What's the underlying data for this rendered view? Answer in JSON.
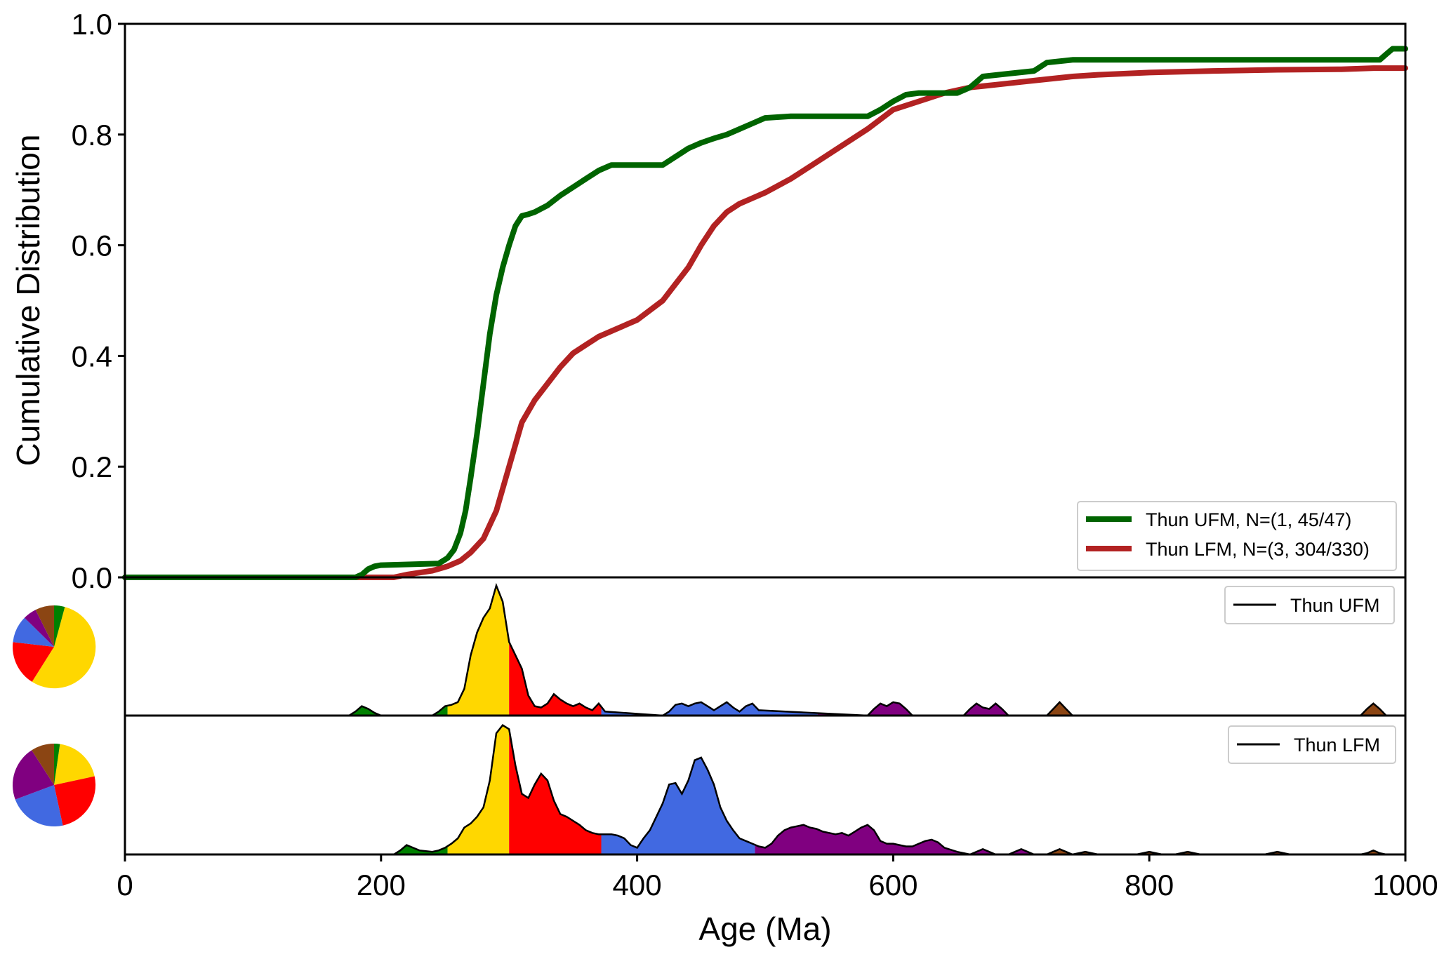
{
  "chart_data": [
    {
      "type": "line",
      "panel": "cdf",
      "xlim": [
        0,
        1000
      ],
      "ylim": [
        0,
        1
      ],
      "ylabel": "Cumulative Distribution",
      "yticks": [
        "0.0",
        "0.2",
        "0.4",
        "0.6",
        "0.8",
        "1.0"
      ],
      "legend_position": "lower-right",
      "series": [
        {
          "name": "Thun UFM, N=(1, 45/47)",
          "color": "#006400",
          "x": [
            0,
            180,
            185,
            190,
            195,
            200,
            245,
            252,
            257,
            262,
            266,
            270,
            275,
            280,
            285,
            290,
            295,
            300,
            305,
            310,
            315,
            320,
            330,
            340,
            350,
            360,
            370,
            380,
            420,
            430,
            440,
            450,
            460,
            470,
            480,
            490,
            500,
            520,
            580,
            590,
            600,
            610,
            620,
            650,
            660,
            670,
            690,
            710,
            720,
            740,
            980,
            985,
            990,
            1000
          ],
          "y": [
            0,
            0,
            0.005,
            0.015,
            0.02,
            0.022,
            0.025,
            0.035,
            0.05,
            0.08,
            0.12,
            0.18,
            0.26,
            0.35,
            0.44,
            0.51,
            0.56,
            0.6,
            0.635,
            0.653,
            0.656,
            0.66,
            0.672,
            0.69,
            0.705,
            0.72,
            0.735,
            0.745,
            0.745,
            0.76,
            0.775,
            0.785,
            0.793,
            0.8,
            0.81,
            0.82,
            0.83,
            0.833,
            0.833,
            0.845,
            0.86,
            0.872,
            0.875,
            0.875,
            0.885,
            0.905,
            0.91,
            0.915,
            0.93,
            0.935,
            0.935,
            0.945,
            0.955,
            0.955
          ]
        },
        {
          "name": "Thun LFM, N=(3, 304/330)",
          "color": "#b22222",
          "x": [
            0,
            210,
            220,
            240,
            252,
            262,
            270,
            280,
            290,
            300,
            310,
            320,
            330,
            340,
            350,
            360,
            370,
            380,
            400,
            420,
            430,
            440,
            450,
            460,
            470,
            480,
            490,
            500,
            520,
            540,
            560,
            580,
            600,
            620,
            640,
            660,
            680,
            700,
            720,
            740,
            760,
            800,
            850,
            900,
            950,
            975,
            1000
          ],
          "y": [
            0,
            0,
            0.005,
            0.012,
            0.02,
            0.03,
            0.045,
            0.07,
            0.12,
            0.2,
            0.28,
            0.32,
            0.35,
            0.38,
            0.405,
            0.42,
            0.435,
            0.445,
            0.465,
            0.5,
            0.53,
            0.56,
            0.6,
            0.635,
            0.66,
            0.675,
            0.685,
            0.695,
            0.72,
            0.75,
            0.78,
            0.81,
            0.845,
            0.86,
            0.875,
            0.885,
            0.89,
            0.895,
            0.9,
            0.905,
            0.908,
            0.912,
            0.915,
            0.917,
            0.918,
            0.92,
            0.92
          ]
        }
      ]
    },
    {
      "type": "area",
      "panel": "kde-upper",
      "legend_label": "Thun UFM",
      "xlim": [
        0,
        1000
      ],
      "ylim": [
        0,
        1
      ],
      "x": [
        0,
        175,
        180,
        185,
        190,
        195,
        200,
        240,
        245,
        250,
        255,
        260,
        265,
        270,
        275,
        280,
        285,
        290,
        295,
        300,
        305,
        310,
        315,
        320,
        325,
        330,
        335,
        340,
        345,
        350,
        355,
        360,
        365,
        370,
        375,
        420,
        425,
        430,
        435,
        440,
        445,
        450,
        455,
        460,
        465,
        470,
        475,
        480,
        485,
        490,
        495,
        580,
        585,
        590,
        595,
        600,
        605,
        610,
        615,
        655,
        660,
        665,
        670,
        675,
        680,
        685,
        690,
        720,
        725,
        730,
        735,
        740,
        965,
        970,
        975,
        980,
        985,
        1000
      ],
      "y": [
        0,
        0,
        0.03,
        0.07,
        0.05,
        0.02,
        0,
        0,
        0.03,
        0.07,
        0.08,
        0.1,
        0.2,
        0.45,
        0.62,
        0.73,
        0.8,
        0.97,
        0.85,
        0.55,
        0.45,
        0.35,
        0.15,
        0.07,
        0.06,
        0.09,
        0.16,
        0.12,
        0.09,
        0.07,
        0.09,
        0.06,
        0.04,
        0.09,
        0.03,
        0,
        0.03,
        0.08,
        0.09,
        0.07,
        0.09,
        0.1,
        0.07,
        0.04,
        0.07,
        0.1,
        0.06,
        0.03,
        0.07,
        0.09,
        0.04,
        0,
        0.05,
        0.09,
        0.07,
        0.1,
        0.09,
        0.05,
        0,
        0,
        0.05,
        0.09,
        0.06,
        0.05,
        0.09,
        0.05,
        0,
        0,
        0.05,
        0.1,
        0.05,
        0,
        0,
        0.05,
        0.09,
        0.05,
        0,
        0
      ],
      "color_bands": [
        {
          "from": 0,
          "to": 252,
          "color": "#008000"
        },
        {
          "from": 252,
          "to": 300,
          "color": "#ffd700"
        },
        {
          "from": 300,
          "to": 372,
          "color": "#ff0000"
        },
        {
          "from": 372,
          "to": 541,
          "color": "#4169e1"
        },
        {
          "from": 541,
          "to": 720,
          "color": "#800080"
        },
        {
          "from": 720,
          "to": 1000,
          "color": "#8b4513"
        }
      ],
      "pie": {
        "values": [
          0.52,
          0.17,
          0.1,
          0.05,
          0.07,
          0.04
        ],
        "colors": [
          "#ffd700",
          "#ff0000",
          "#4169e1",
          "#800080",
          "#8b4513",
          "#008000"
        ],
        "start_value": 0.05
      }
    },
    {
      "type": "area",
      "panel": "kde-lower",
      "legend_label": "Thun LFM",
      "xlim": [
        0,
        1000
      ],
      "ylim": [
        0,
        1
      ],
      "x": [
        0,
        210,
        215,
        220,
        225,
        230,
        240,
        245,
        250,
        255,
        260,
        265,
        270,
        275,
        280,
        285,
        290,
        295,
        300,
        305,
        310,
        315,
        320,
        325,
        330,
        335,
        340,
        345,
        350,
        355,
        360,
        365,
        370,
        375,
        380,
        385,
        390,
        395,
        400,
        405,
        410,
        415,
        420,
        425,
        430,
        435,
        440,
        445,
        450,
        455,
        460,
        465,
        470,
        475,
        480,
        485,
        490,
        495,
        500,
        505,
        510,
        515,
        520,
        525,
        530,
        535,
        540,
        545,
        550,
        555,
        560,
        565,
        570,
        575,
        580,
        585,
        590,
        595,
        600,
        605,
        610,
        615,
        620,
        625,
        630,
        635,
        640,
        650,
        660,
        665,
        670,
        675,
        680,
        690,
        695,
        700,
        705,
        710,
        720,
        725,
        730,
        735,
        740,
        745,
        750,
        755,
        760,
        790,
        795,
        800,
        805,
        810,
        820,
        825,
        830,
        835,
        840,
        890,
        895,
        900,
        905,
        910,
        965,
        970,
        975,
        980,
        985,
        1000
      ],
      "y": [
        0,
        0,
        0.03,
        0.07,
        0.05,
        0.03,
        0.02,
        0.03,
        0.05,
        0.08,
        0.12,
        0.2,
        0.23,
        0.28,
        0.35,
        0.55,
        0.9,
        0.96,
        0.93,
        0.66,
        0.45,
        0.42,
        0.52,
        0.6,
        0.55,
        0.4,
        0.3,
        0.28,
        0.25,
        0.22,
        0.18,
        0.16,
        0.15,
        0.15,
        0.15,
        0.14,
        0.12,
        0.07,
        0.05,
        0.12,
        0.18,
        0.28,
        0.38,
        0.52,
        0.53,
        0.45,
        0.55,
        0.7,
        0.72,
        0.63,
        0.52,
        0.35,
        0.25,
        0.18,
        0.12,
        0.1,
        0.08,
        0.06,
        0.05,
        0.08,
        0.14,
        0.18,
        0.2,
        0.21,
        0.22,
        0.2,
        0.19,
        0.17,
        0.16,
        0.15,
        0.16,
        0.14,
        0.17,
        0.2,
        0.22,
        0.18,
        0.1,
        0.08,
        0.08,
        0.07,
        0.06,
        0.06,
        0.08,
        0.1,
        0.11,
        0.09,
        0.05,
        0.02,
        0,
        0.02,
        0.04,
        0.02,
        0,
        0,
        0.02,
        0.04,
        0.02,
        0,
        0,
        0.02,
        0.04,
        0.02,
        0,
        0.01,
        0.02,
        0.01,
        0,
        0,
        0.01,
        0.02,
        0.01,
        0,
        0,
        0.01,
        0.02,
        0.01,
        0,
        0,
        0.01,
        0.02,
        0.01,
        0,
        0,
        0.01,
        0.03,
        0.01,
        0,
        0
      ],
      "color_bands": [
        {
          "from": 0,
          "to": 252,
          "color": "#008000"
        },
        {
          "from": 252,
          "to": 300,
          "color": "#ffd700"
        },
        {
          "from": 300,
          "to": 372,
          "color": "#ff0000"
        },
        {
          "from": 372,
          "to": 492,
          "color": "#4169e1"
        },
        {
          "from": 492,
          "to": 720,
          "color": "#800080"
        },
        {
          "from": 720,
          "to": 1000,
          "color": "#8b4513"
        }
      ],
      "pie": {
        "values": [
          0.17,
          0.22,
          0.2,
          0.19,
          0.08,
          0.02
        ],
        "colors": [
          "#ffd700",
          "#ff0000",
          "#4169e1",
          "#800080",
          "#8b4513",
          "#008000"
        ],
        "start_value": 0.02
      }
    }
  ],
  "x_axis": {
    "label": "Age (Ma)",
    "ticks": [
      "0",
      "200",
      "400",
      "600",
      "800",
      "1000"
    ],
    "tick_values": [
      0,
      200,
      400,
      600,
      800,
      1000
    ]
  }
}
